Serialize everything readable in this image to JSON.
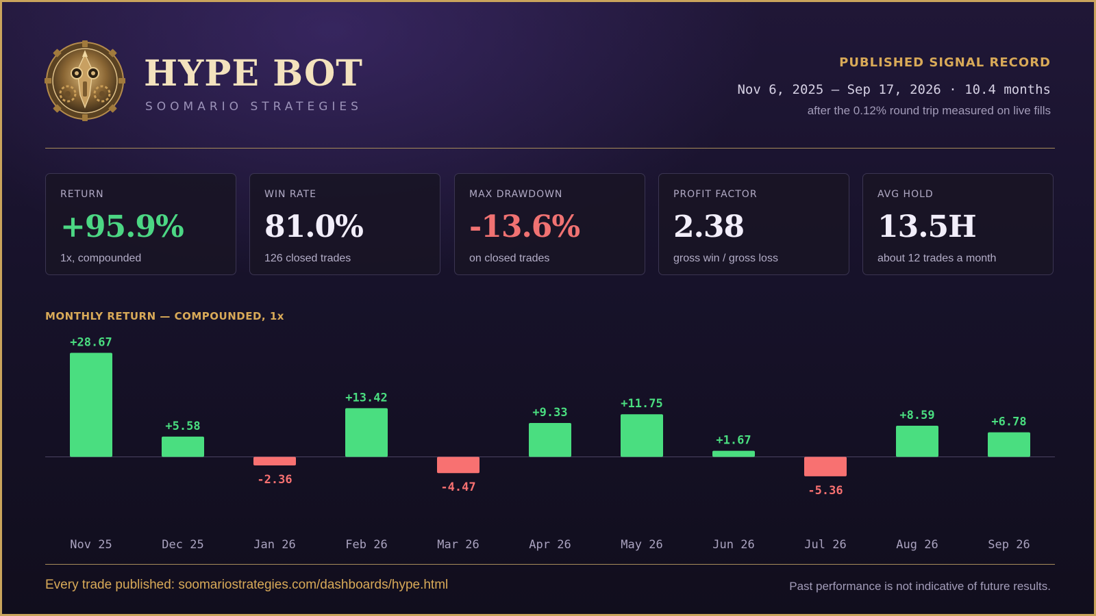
{
  "brand": {
    "title": "HYPE BOT",
    "subtitle": "SOOMARIO STRATEGIES"
  },
  "record": {
    "label": "PUBLISHED SIGNAL RECORD",
    "range": "Nov 6, 2025 – Sep 17, 2026 · 10.4 months",
    "note": "after the 0.12% round trip measured on live fills"
  },
  "stats": [
    {
      "label": "RETURN",
      "value": "+95.9%",
      "caption": "1x, compounded",
      "tone": "pos"
    },
    {
      "label": "WIN RATE",
      "value": "81.0%",
      "caption": "126 closed trades",
      "tone": "neutral"
    },
    {
      "label": "MAX DRAWDOWN",
      "value": "-13.6%",
      "caption": "on closed trades",
      "tone": "neg"
    },
    {
      "label": "PROFIT FACTOR",
      "value": "2.38",
      "caption": "gross win / gross loss",
      "tone": "neutral"
    },
    {
      "label": "AVG HOLD",
      "value": "13.5H",
      "caption": "about 12 trades a month",
      "tone": "neutral"
    }
  ],
  "chart_data": {
    "type": "bar",
    "title": "MONTHLY RETURN — COMPOUNDED, 1x",
    "categories": [
      "Nov 25",
      "Dec 25",
      "Jan 26",
      "Feb 26",
      "Mar 26",
      "Apr 26",
      "May 26",
      "Jun 26",
      "Jul 26",
      "Aug 26",
      "Sep 26"
    ],
    "values": [
      28.67,
      5.58,
      -2.36,
      13.42,
      -4.47,
      9.33,
      11.75,
      1.67,
      -5.36,
      8.59,
      6.78
    ],
    "labels": [
      "+28.67",
      "+5.58",
      "-2.36",
      "+13.42",
      "-4.47",
      "+9.33",
      "+11.75",
      "+1.67",
      "-5.36",
      "+8.59",
      "+6.78"
    ],
    "positive_color": "#4ade80",
    "negative_color": "#f87171",
    "grid": false,
    "legend": "none"
  },
  "footer": {
    "link_text": "Every trade published: soomariostrategies.com/dashboards/hype.html",
    "disclaimer": "Past performance is not indicative of future results."
  },
  "colors": {
    "accent_gold": "#d9aa58",
    "frame_gold": "#c9a45c",
    "positive": "#4ade80",
    "negative": "#f87171"
  },
  "icons": {
    "emblem": "steampunk-gear-medallion-icon"
  }
}
